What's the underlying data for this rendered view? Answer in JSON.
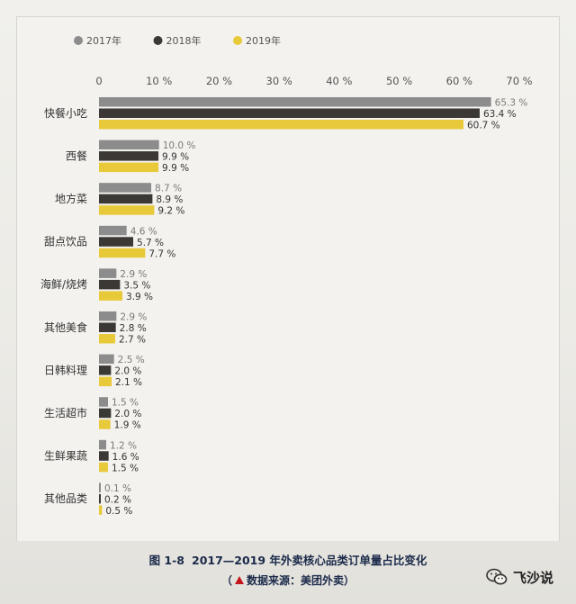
{
  "chart_data": {
    "type": "bar",
    "orientation": "horizontal",
    "categories": [
      "快餐小吃",
      "西餐",
      "地方菜",
      "甜点饮品",
      "海鲜/烧烤",
      "其他美食",
      "日韩料理",
      "生活超市",
      "生鲜果蔬",
      "其他品类"
    ],
    "series": [
      {
        "name": "2017年",
        "color": "#8c8c8c",
        "values": [
          65.3,
          10.0,
          8.7,
          4.6,
          2.9,
          2.9,
          2.5,
          1.5,
          1.2,
          0.1
        ],
        "labels": [
          "65.3 %",
          "10.0 %",
          "8.7 %",
          "4.6 %",
          "2.9 %",
          "2.9 %",
          "2.5 %",
          "1.5 %",
          "1.2 %",
          "0.1 %"
        ]
      },
      {
        "name": "2018年",
        "color": "#3b3836",
        "values": [
          63.4,
          9.9,
          8.9,
          5.7,
          3.5,
          2.8,
          2.0,
          2.0,
          1.6,
          0.2
        ],
        "labels": [
          "63.4 %",
          "9.9 %",
          "8.9 %",
          "5.7 %",
          "3.5 %",
          "2.8 %",
          "2.0 %",
          "2.0 %",
          "1.6 %",
          "0.2 %"
        ]
      },
      {
        "name": "2019年",
        "color": "#e8c93a",
        "values": [
          60.7,
          9.9,
          9.2,
          7.7,
          3.9,
          2.7,
          2.1,
          1.9,
          1.5,
          0.5
        ],
        "labels": [
          "60.7 %",
          "9.9 %",
          "9.2 %",
          "7.7 %",
          "3.9 %",
          "2.7 %",
          "2.1 %",
          "1.9 %",
          "1.5 %",
          "0.5 %"
        ]
      }
    ],
    "xlim": [
      0,
      70
    ],
    "x_ticks": [
      "0",
      "10 %",
      "20 %",
      "30 %",
      "40 %",
      "50 %",
      "60 %",
      "70 %"
    ],
    "x_axis_position": "top",
    "legend_position": "top-left",
    "grid": false
  },
  "caption": {
    "number": "图 1-8",
    "title": "2017—2019 年外卖核心品类订单量占比变化"
  },
  "source": {
    "open": "（",
    "text": "数据来源：美团外卖",
    "close": "）"
  },
  "watermark": {
    "text": "飞沙说",
    "icon": "wechat-icon"
  }
}
